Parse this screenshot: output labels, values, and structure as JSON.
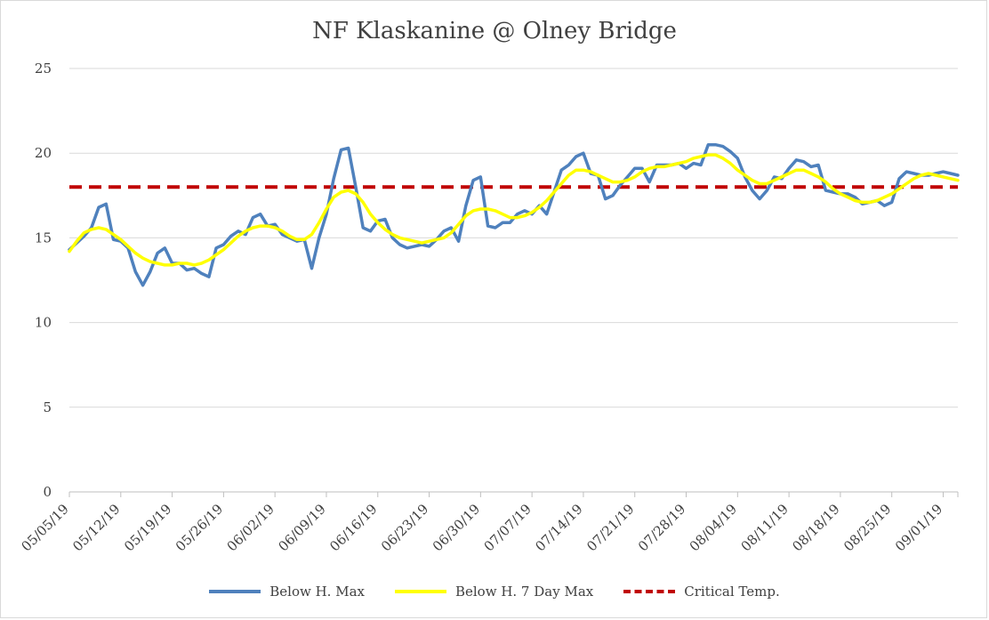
{
  "chart_data": {
    "type": "line",
    "title": "NF Klaskanine @ Olney Bridge",
    "xlabel": "",
    "ylabel": "",
    "ylim": [
      0,
      25
    ],
    "yticks": [
      "0",
      "5",
      "10",
      "15",
      "20",
      "25"
    ],
    "xticks": [
      "05/05/19",
      "05/12/19",
      "05/19/19",
      "05/26/19",
      "06/02/19",
      "06/09/19",
      "06/16/19",
      "06/23/19",
      "06/30/19",
      "07/07/19",
      "07/14/19",
      "07/21/19",
      "07/28/19",
      "08/04/19",
      "08/11/19",
      "08/18/19",
      "08/25/19",
      "09/01/19"
    ],
    "x_start": "05/05/19",
    "x_end": "09/03/19",
    "grid": true,
    "legend_position": "bottom",
    "series": [
      {
        "name": "Below H. Max",
        "color": "#4f81bd",
        "values": [
          14.3,
          14.7,
          15.1,
          15.6,
          16.8,
          17.0,
          14.9,
          14.8,
          14.4,
          13.0,
          12.2,
          13.0,
          14.1,
          14.4,
          13.5,
          13.5,
          13.1,
          13.2,
          12.9,
          12.7,
          14.4,
          14.6,
          15.1,
          15.4,
          15.2,
          16.2,
          16.4,
          15.7,
          15.8,
          15.2,
          15.0,
          14.8,
          14.9,
          13.2,
          15.0,
          16.4,
          18.5,
          20.2,
          20.3,
          18.0,
          15.6,
          15.4,
          16.0,
          16.1,
          15.0,
          14.6,
          14.4,
          14.5,
          14.6,
          14.5,
          14.9,
          15.4,
          15.6,
          14.8,
          16.9,
          18.4,
          18.6,
          15.7,
          15.6,
          15.9,
          15.9,
          16.4,
          16.6,
          16.4,
          16.9,
          16.4,
          17.7,
          19.0,
          19.3,
          19.8,
          20.0,
          18.8,
          18.7,
          17.3,
          17.5,
          18.1,
          18.6,
          19.1,
          19.1,
          18.3,
          19.3,
          19.3,
          19.3,
          19.4,
          19.1,
          19.4,
          19.3,
          20.5,
          20.5,
          20.4,
          20.1,
          19.7,
          18.6,
          17.8,
          17.3,
          17.8,
          18.6,
          18.5,
          19.1,
          19.6,
          19.5,
          19.2,
          19.3,
          17.8,
          17.7,
          17.6,
          17.6,
          17.4,
          17.0,
          17.1,
          17.2,
          16.9,
          17.1,
          18.5,
          18.9,
          18.8,
          18.7,
          18.7,
          18.8,
          18.9,
          18.8,
          18.7
        ]
      },
      {
        "name": "Below H. 7 Day Max",
        "color": "#ffff00",
        "values": [
          14.2,
          14.8,
          15.3,
          15.5,
          15.6,
          15.5,
          15.2,
          14.9,
          14.5,
          14.1,
          13.8,
          13.6,
          13.5,
          13.4,
          13.4,
          13.5,
          13.5,
          13.4,
          13.5,
          13.7,
          14.0,
          14.3,
          14.7,
          15.1,
          15.4,
          15.6,
          15.7,
          15.7,
          15.6,
          15.4,
          15.1,
          14.9,
          14.9,
          15.2,
          15.9,
          16.7,
          17.4,
          17.7,
          17.8,
          17.6,
          17.1,
          16.4,
          15.9,
          15.5,
          15.2,
          15.0,
          14.9,
          14.8,
          14.7,
          14.8,
          14.9,
          15.0,
          15.3,
          15.8,
          16.3,
          16.6,
          16.7,
          16.7,
          16.6,
          16.4,
          16.2,
          16.2,
          16.3,
          16.5,
          16.8,
          17.2,
          17.7,
          18.2,
          18.7,
          19.0,
          19.0,
          18.9,
          18.7,
          18.5,
          18.3,
          18.3,
          18.4,
          18.6,
          18.9,
          19.1,
          19.2,
          19.2,
          19.3,
          19.4,
          19.5,
          19.7,
          19.8,
          19.9,
          19.9,
          19.7,
          19.4,
          19.0,
          18.7,
          18.4,
          18.2,
          18.2,
          18.4,
          18.6,
          18.8,
          19.0,
          19.0,
          18.8,
          18.6,
          18.3,
          17.9,
          17.6,
          17.4,
          17.2,
          17.1,
          17.1,
          17.2,
          17.4,
          17.6,
          17.9,
          18.2,
          18.5,
          18.7,
          18.8,
          18.7,
          18.6,
          18.5,
          18.4
        ]
      },
      {
        "name": "Critical Temp.",
        "color": "#c00000",
        "dashed": true,
        "values": [
          18,
          18
        ]
      }
    ]
  }
}
